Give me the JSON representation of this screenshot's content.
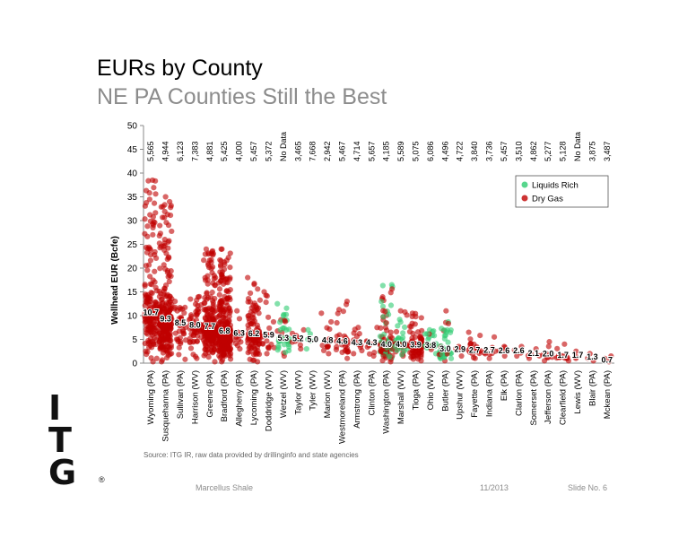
{
  "slide": {
    "title": "EURs by County",
    "subtitle": "NE PA Counties Still the Best",
    "source": "Source: ITG IR, raw data provided by drillinginfo and state agencies",
    "footer_left": "Marcellus Shale",
    "footer_date": "11/2013",
    "footer_slide": "Slide No. 6"
  },
  "logo": {
    "letters": [
      "I",
      "T",
      "G"
    ],
    "registered": "®"
  },
  "colors": {
    "dry_gas": "#c00000",
    "liquids_rich": "#2ecc71",
    "axis": "#888888",
    "grid": "#d9d9d9"
  },
  "chart_data": {
    "type": "scatter",
    "ylabel": "Wellhead EUR (Bcfe)",
    "ylim": [
      0,
      50
    ],
    "yticks": [
      0,
      5,
      10,
      15,
      20,
      25,
      30,
      35,
      40,
      45,
      50
    ],
    "legend": {
      "position": "top-right",
      "entries": [
        {
          "label": "Liquids Rich",
          "color": "#2ecc71"
        },
        {
          "label": "Dry Gas",
          "color": "#c00000"
        }
      ]
    },
    "categories": [
      "Wyoming (PA)",
      "Susquehanna (PA)",
      "Sullivan (PA)",
      "Harrison (WV)",
      "Greene (PA)",
      "Bradford (PA)",
      "Allegheny (PA)",
      "Lycoming (PA)",
      "Doddridge (WV)",
      "Wetzel (WV)",
      "Taylor (WV)",
      "Tyler (WV)",
      "Marion (WV)",
      "Westmoreland (PA)",
      "Armstrong (PA)",
      "Clinton (PA)",
      "Washington (PA)",
      "Marshall (WV)",
      "Tioga (PA)",
      "Ohio (WV)",
      "Butler (PA)",
      "Upshur (WV)",
      "Fayette (PA)",
      "Indiana (PA)",
      "Elk (PA)",
      "Clarion (PA)",
      "Somerset (PA)",
      "Jefferson (PA)",
      "Clearfield (PA)",
      "Lewis (WV)",
      "Blair (PA)",
      "Mckean (PA)"
    ],
    "top_labels": [
      "5,565",
      "4,944",
      "6,123",
      "7,383",
      "4,881",
      "5,425",
      "4,000",
      "5,457",
      "5,372",
      "No Data",
      "3,465",
      "7,668",
      "2,942",
      "5,467",
      "4,714",
      "5,657",
      "4,185",
      "5,589",
      "5,075",
      "6,086",
      "4,496",
      "4,722",
      "3,840",
      "3,736",
      "5,457",
      "3,510",
      "4,862",
      "5,277",
      "5,128",
      "No Data",
      "3,875",
      "3,487"
    ],
    "medians": [
      10.7,
      9.3,
      8.5,
      8.0,
      7.7,
      6.8,
      6.3,
      6.2,
      5.9,
      5.3,
      5.2,
      5.0,
      4.8,
      4.6,
      4.3,
      4.3,
      4.0,
      4.0,
      3.9,
      3.8,
      3.0,
      2.9,
      2.7,
      2.7,
      2.6,
      2.6,
      2.1,
      2.0,
      1.7,
      1.7,
      1.3,
      0.7
    ],
    "median_labels": [
      "10.7",
      "9.3",
      "8.5",
      "8.0",
      "7.7",
      "6.8",
      "6.3",
      "6.2",
      "5.9",
      "5.3",
      "5.2",
      "5.0",
      "4.8",
      "4.6",
      "4.3",
      "4.3",
      "4.0",
      "4.0",
      "3.9",
      "3.8",
      "3.0",
      "2.9",
      "2.7",
      "2.7",
      "2.6",
      "2.6",
      "2.1",
      "2.0",
      "1.7",
      "1.7",
      "1.3",
      "0.7"
    ],
    "max_values": [
      38.5,
      35,
      13,
      14,
      24,
      24,
      11,
      18,
      15,
      12.5,
      7,
      7,
      10.5,
      13,
      7.5,
      7.5,
      16.5,
      11,
      10.5,
      7,
      11,
      3.5,
      6.5,
      5.5,
      3.5,
      3.5,
      3,
      4.5,
      4,
      2.5,
      2,
      1.5
    ],
    "min_values": [
      0.3,
      0.3,
      0.8,
      1,
      0.3,
      0.3,
      3,
      0.3,
      2,
      1.5,
      3,
      3,
      2,
      1,
      2,
      1.5,
      0.3,
      1.5,
      0.5,
      2,
      0.5,
      1.5,
      1,
      1,
      1.5,
      1.5,
      1,
      0.5,
      0.5,
      1,
      0.5,
      0.3
    ],
    "well_counts": [
      180,
      260,
      35,
      60,
      230,
      300,
      15,
      110,
      20,
      45,
      12,
      6,
      12,
      30,
      12,
      10,
      120,
      45,
      90,
      25,
      50,
      6,
      20,
      10,
      5,
      4,
      5,
      10,
      12,
      3,
      3,
      3
    ],
    "liquids_share": [
      0,
      0,
      0,
      0,
      0,
      0,
      0,
      0,
      0,
      0.7,
      0,
      1,
      0,
      0,
      0,
      0,
      0.35,
      0.7,
      0,
      0.8,
      0.6,
      0,
      0,
      0,
      0,
      0,
      0,
      0,
      0,
      0,
      0,
      0
    ]
  }
}
